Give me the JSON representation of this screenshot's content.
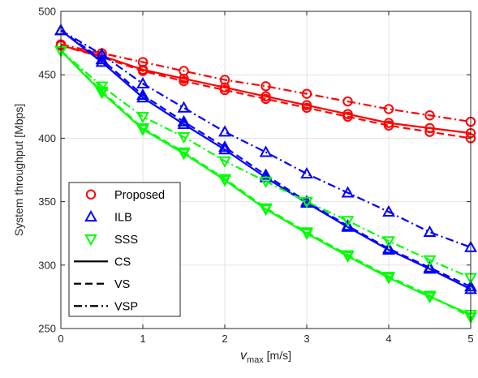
{
  "chart_data": {
    "type": "line",
    "title": "",
    "xlabel_var": "v",
    "xlabel_sub": "max",
    "xlabel_unit": " [m/s]",
    "ylabel": "System throughput [Mbps]",
    "xlim": [
      0,
      5
    ],
    "ylim": [
      250,
      500
    ],
    "xticks": [
      0,
      1,
      2,
      3,
      4,
      5
    ],
    "yticks": [
      250,
      300,
      350,
      400,
      450,
      500
    ],
    "grid": true,
    "legend_position": "bottom-left",
    "x": [
      0,
      0.5,
      1,
      1.5,
      2,
      2.5,
      3,
      3.5,
      4,
      4.5,
      5
    ],
    "schemes": [
      {
        "name": "Proposed",
        "color": "#ff0000",
        "marker": "circle"
      },
      {
        "name": "ILB",
        "color": "#0000ff",
        "marker": "triangle-up"
      },
      {
        "name": "SSS",
        "color": "#00ff00",
        "marker": "triangle-down"
      }
    ],
    "linestyles": [
      {
        "name": "CS",
        "dash": "solid"
      },
      {
        "name": "VS",
        "dash": "dashed"
      },
      {
        "name": "VSP",
        "dash": "dashdot"
      }
    ],
    "series": [
      {
        "scheme": "Proposed",
        "style": "CS",
        "values": [
          473,
          465,
          454,
          447,
          440,
          433,
          426,
          419,
          412,
          408,
          404
        ]
      },
      {
        "scheme": "Proposed",
        "style": "VS",
        "values": [
          473,
          464,
          453,
          445,
          438,
          431,
          424,
          417,
          410,
          405,
          400
        ]
      },
      {
        "scheme": "Proposed",
        "style": "VSP",
        "values": [
          474,
          467,
          460,
          453,
          446,
          441,
          435,
          429,
          423,
          418,
          413
        ]
      },
      {
        "scheme": "ILB",
        "style": "CS",
        "values": [
          485,
          460,
          432,
          411,
          391,
          369,
          349,
          330,
          312,
          297,
          281
        ]
      },
      {
        "scheme": "ILB",
        "style": "VS",
        "values": [
          485,
          462,
          434,
          413,
          393,
          371,
          350,
          331,
          313,
          298,
          283
        ]
      },
      {
        "scheme": "ILB",
        "style": "VSP",
        "values": [
          485,
          466,
          443,
          424,
          405,
          389,
          372,
          357,
          342,
          326,
          314
        ]
      },
      {
        "scheme": "SSS",
        "style": "CS",
        "values": [
          469,
          436,
          407,
          388,
          367,
          344,
          325,
          307,
          290,
          275,
          261
        ]
      },
      {
        "scheme": "SSS",
        "style": "VS",
        "values": [
          469,
          437,
          408,
          389,
          368,
          345,
          326,
          308,
          291,
          276,
          259
        ]
      },
      {
        "scheme": "SSS",
        "style": "VSP",
        "values": [
          469,
          441,
          417,
          401,
          382,
          366,
          350,
          335,
          319,
          304,
          290
        ]
      }
    ]
  }
}
